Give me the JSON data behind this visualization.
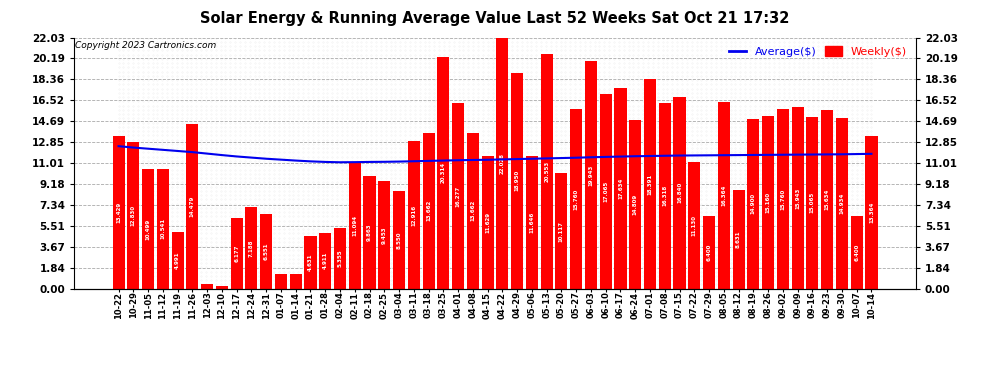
{
  "title": "Solar Energy & Running Average Value Last 52 Weeks Sat Oct 21 17:32",
  "copyright": "Copyright 2023 Cartronics.com",
  "legend_avg": "Average($)",
  "legend_weekly": "Weekly($)",
  "bar_color": "#ff0000",
  "avg_line_color": "#0000ee",
  "background_color": "#ffffff",
  "grid_color": "#aaaaaa",
  "yticks": [
    0.0,
    1.84,
    3.67,
    5.51,
    7.34,
    9.18,
    11.01,
    12.85,
    14.69,
    16.52,
    18.36,
    20.19,
    22.03
  ],
  "categories": [
    "10-22",
    "10-29",
    "11-05",
    "11-12",
    "11-19",
    "11-26",
    "12-03",
    "12-10",
    "12-17",
    "12-24",
    "12-31",
    "01-07",
    "01-14",
    "01-21",
    "01-28",
    "02-04",
    "02-11",
    "02-18",
    "02-25",
    "03-04",
    "03-11",
    "03-18",
    "03-25",
    "04-01",
    "04-08",
    "04-15",
    "04-22",
    "04-29",
    "05-06",
    "05-13",
    "05-20",
    "05-27",
    "06-03",
    "06-10",
    "06-17",
    "06-24",
    "07-01",
    "07-08",
    "07-15",
    "07-22",
    "07-29",
    "08-05",
    "08-12",
    "08-19",
    "08-26",
    "09-02",
    "09-09",
    "09-16",
    "09-23",
    "09-30",
    "10-07",
    "10-14"
  ],
  "weekly_values": [
    13.429,
    12.83,
    10.499,
    10.541,
    4.991,
    14.479,
    0.431,
    0.243,
    6.177,
    7.188,
    6.551,
    1.293,
    1.293,
    4.631,
    4.911,
    5.355,
    11.094,
    9.863,
    9.453,
    8.55,
    12.916,
    13.662,
    20.314,
    16.277,
    13.662,
    11.629,
    22.028,
    18.95,
    11.646,
    20.553,
    10.117,
    15.76,
    19.943,
    17.065,
    17.634,
    14.809,
    18.391,
    16.318,
    16.84,
    11.13,
    6.4,
    16.364,
    8.631,
    14.9,
    15.16,
    15.76,
    15.943,
    15.065,
    15.634,
    14.934,
    6.4,
    13.364
  ],
  "avg_values": [
    12.5,
    12.38,
    12.28,
    12.18,
    12.08,
    11.98,
    11.85,
    11.72,
    11.6,
    11.5,
    11.4,
    11.32,
    11.24,
    11.17,
    11.12,
    11.09,
    11.1,
    11.12,
    11.13,
    11.15,
    11.18,
    11.21,
    11.24,
    11.27,
    11.29,
    11.31,
    11.34,
    11.37,
    11.4,
    11.43,
    11.46,
    11.49,
    11.53,
    11.56,
    11.59,
    11.62,
    11.64,
    11.66,
    11.68,
    11.69,
    11.7,
    11.71,
    11.72,
    11.73,
    11.74,
    11.75,
    11.76,
    11.77,
    11.78,
    11.79,
    11.81,
    11.83
  ]
}
